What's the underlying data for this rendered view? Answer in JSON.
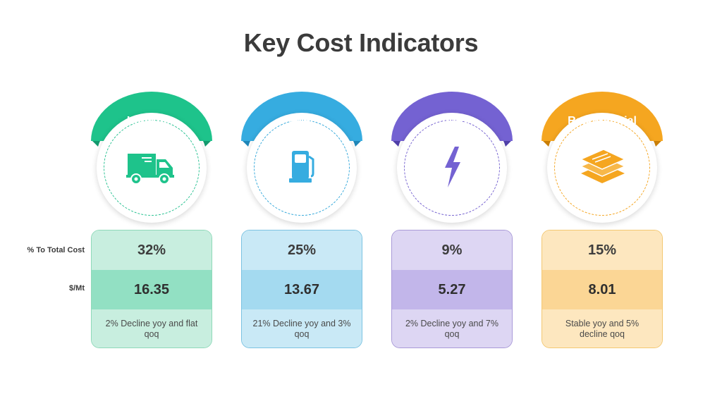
{
  "title": "Key Cost Indicators",
  "row_labels": {
    "pct": "% To Total Cost",
    "smt": "$/Mt"
  },
  "columns": [
    {
      "name": "Logistics",
      "icon": "truck-icon",
      "color": "#1ec38b",
      "pct": "32%",
      "smt": "16.35",
      "note": "2% Decline yoy and flat qoq"
    },
    {
      "name": "Fuel",
      "icon": "fuel-pump-icon",
      "color": "#36ace0",
      "pct": "25%",
      "smt": "13.67",
      "note": "21% Decline yoy and 3% qoq"
    },
    {
      "name": "Power",
      "icon": "lightning-bolt-icon",
      "color": "#7462d2",
      "pct": "9%",
      "smt": "5.27",
      "note": "2% Decline yoy and 7% qoq"
    },
    {
      "name": "Raw Material",
      "icon": "layers-icon",
      "color": "#f5a620",
      "pct": "15%",
      "smt": "8.01",
      "note": "Stable yoy and 5% decline qoq"
    }
  ]
}
